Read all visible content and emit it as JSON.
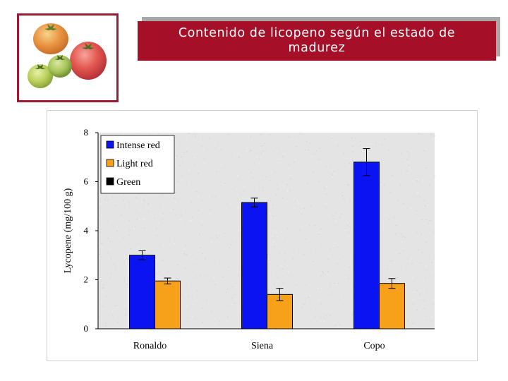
{
  "header": {
    "title": "Contenido de licopeno según el estado de madurez"
  },
  "photo": {
    "description_icon": "tomatoes-photo",
    "frame_color": "#9b1b30"
  },
  "colors": {
    "title_bg": "#a50f27",
    "title_text": "#ffffff",
    "plot_bg": "#e4e4e4"
  },
  "chart_data": {
    "type": "bar",
    "title": "",
    "xlabel": "",
    "ylabel": "Lycopene (mg/100 g)",
    "ylim": [
      0,
      8
    ],
    "yticks": [
      "0",
      "2",
      "4",
      "6",
      "8"
    ],
    "categories": [
      "Ronaldo",
      "Siena",
      "Copo"
    ],
    "series": [
      {
        "name": "Intense red",
        "color": "#0a14f0",
        "values": [
          3.0,
          5.15,
          6.8
        ],
        "errors": [
          0.18,
          0.18,
          0.55
        ]
      },
      {
        "name": "Light red",
        "color": "#f7a11a",
        "values": [
          1.95,
          1.4,
          1.85
        ],
        "errors": [
          0.12,
          0.25,
          0.2
        ]
      },
      {
        "name": "Green",
        "color": "#000000",
        "values": [
          0,
          0,
          0
        ],
        "errors": [
          0,
          0,
          0
        ]
      }
    ],
    "legend": "top-left",
    "grid": false
  }
}
